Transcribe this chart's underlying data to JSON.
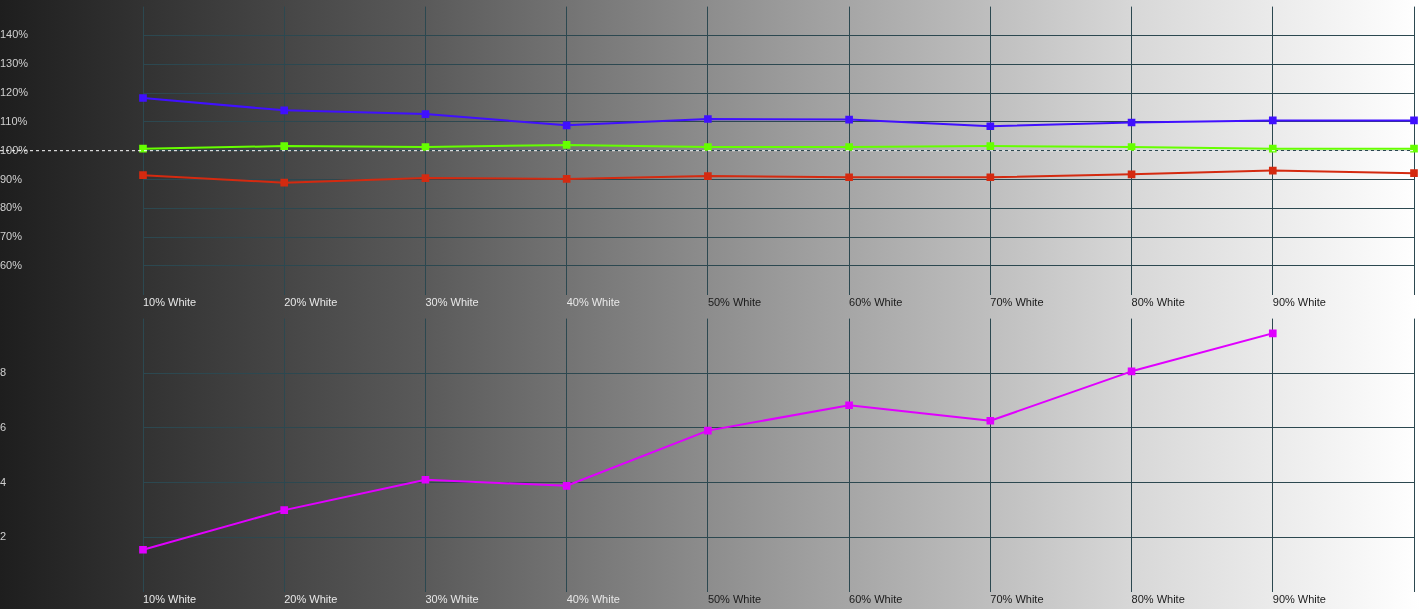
{
  "chart_data": [
    {
      "type": "line",
      "categories": [
        "10% White",
        "20% White",
        "30% White",
        "40% White",
        "50% White",
        "60% White",
        "70% White",
        "80% White",
        "90% White",
        null
      ],
      "series": [
        {
          "color": "#4010ff",
          "values": [
            118.3,
            114,
            112.7,
            108.8,
            111,
            110.8,
            108.5,
            109.8,
            110.5,
            110.5
          ]
        },
        {
          "color": "#66ff00",
          "values": [
            100.7,
            101.6,
            101.3,
            102,
            101.3,
            101.3,
            101.6,
            101.3,
            100.7,
            100.7
          ]
        },
        {
          "color": "#d42a10",
          "values": [
            91.5,
            88.9,
            90.5,
            90.2,
            91.2,
            90.8,
            90.8,
            91.8,
            93.1,
            92.2
          ]
        }
      ],
      "ylim": [
        50,
        150
      ],
      "yticks": [
        {
          "value": 60,
          "label": "60%"
        },
        {
          "value": 70,
          "label": "70%"
        },
        {
          "value": 80,
          "label": "80%"
        },
        {
          "value": 90,
          "label": "90%"
        },
        {
          "value": 100,
          "label": "100%"
        },
        {
          "value": 110,
          "label": "110%"
        },
        {
          "value": 120,
          "label": "120%"
        },
        {
          "value": 130,
          "label": "130%"
        },
        {
          "value": 140,
          "label": "140%"
        }
      ],
      "grid": true,
      "marker": "square",
      "legend": false,
      "ref_lines": [
        {
          "axis": "y",
          "value": 100,
          "color": "#ffffff",
          "line_style": "dashed"
        }
      ]
    },
    {
      "type": "line",
      "categories": [
        "10% White",
        "20% White",
        "30% White",
        "40% White",
        "50% White",
        "60% White",
        "70% White",
        "80% White",
        "90% White",
        null
      ],
      "series": [
        {
          "color": "#e000ff",
          "values": [
            1.54,
            2.99,
            4.1,
            3.88,
            5.9,
            6.83,
            6.26,
            8.07,
            9.46,
            null
          ]
        }
      ],
      "ylim": [
        0,
        10
      ],
      "yticks": [
        2,
        4,
        6,
        8
      ],
      "grid": true,
      "marker": "square",
      "legend": false
    }
  ]
}
